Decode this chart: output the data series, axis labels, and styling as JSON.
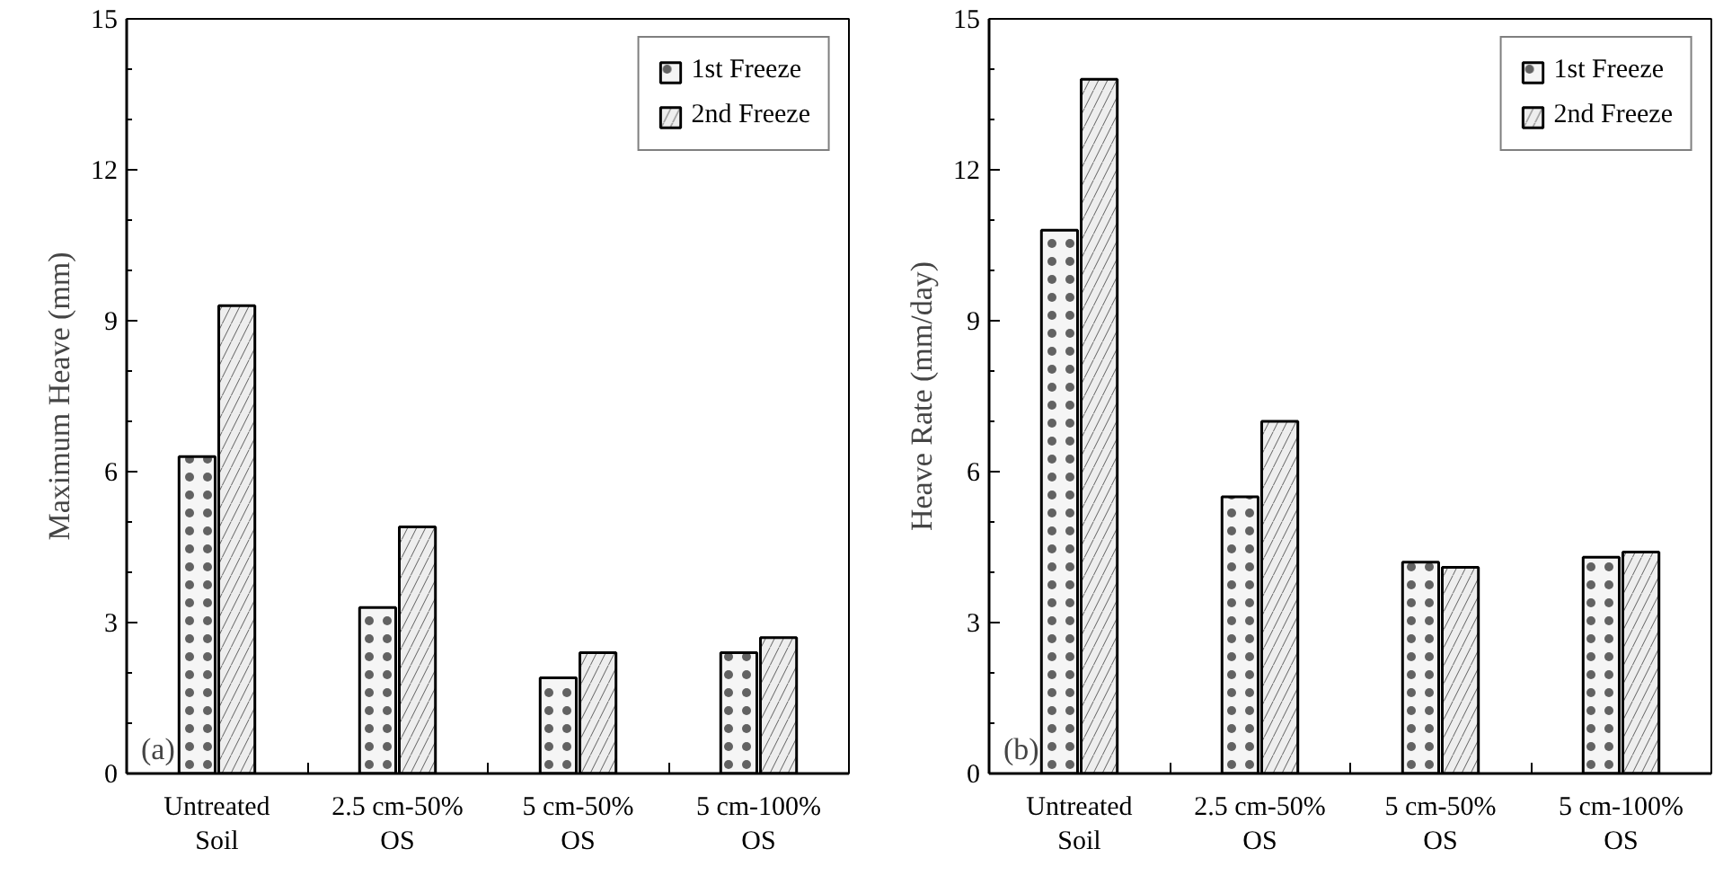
{
  "chart_data": [
    {
      "type": "bar",
      "ylabel": "Maximum Heave (mm)",
      "annotations": [
        "(a)"
      ],
      "categories": [
        "Untreated\nSoil",
        "2.5 cm-50%\nOS",
        "5 cm-50%\nOS",
        "5 cm-100%\nOS"
      ],
      "ylim": [
        0,
        15
      ],
      "yticks": [
        0,
        3,
        6,
        9,
        12,
        15
      ],
      "legend": "top right",
      "grid": false,
      "series": [
        {
          "name": "1st Freeze",
          "color": "#f5f5f5",
          "values": [
            6.3,
            3.3,
            1.9,
            2.4
          ]
        },
        {
          "name": "2nd Freeze",
          "color": "#eeeeee",
          "values": [
            9.3,
            4.9,
            2.4,
            2.7
          ]
        }
      ]
    },
    {
      "type": "bar",
      "ylabel": "Heave Rate (mm/day)",
      "annotations": [
        "(b)"
      ],
      "categories": [
        "Untreated\nSoil",
        "2.5 cm-50%\nOS",
        "5 cm-50%\nOS",
        "5 cm-100%\nOS"
      ],
      "ylim": [
        0,
        15
      ],
      "yticks": [
        0,
        3,
        6,
        9,
        12,
        15
      ],
      "legend": "top right",
      "grid": false,
      "series": [
        {
          "name": "1st Freeze",
          "color": "#f5f5f5",
          "values": [
            10.8,
            5.5,
            4.2,
            4.3
          ]
        },
        {
          "name": "2nd Freeze",
          "color": "#eeeeee",
          "values": [
            13.8,
            7.0,
            4.1,
            4.4
          ]
        }
      ]
    }
  ]
}
